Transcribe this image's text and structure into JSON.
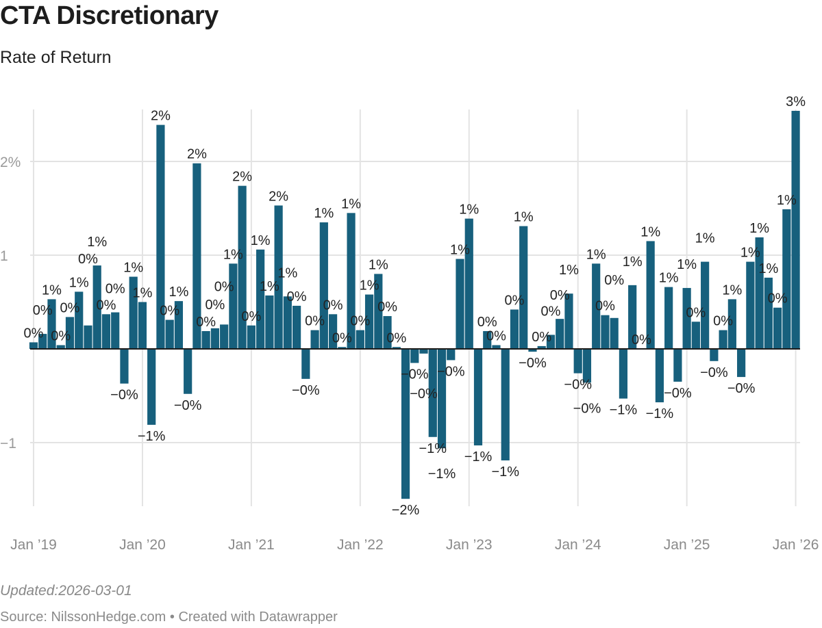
{
  "header": {
    "title": "CTA Discretionary",
    "subtitle": "Rate of Return"
  },
  "footer": {
    "updated": "Updated:2026-03-01",
    "source": "Source: NilssonHedge.com • Created with Datawrapper"
  },
  "chart_data": {
    "type": "bar",
    "title": "CTA Discretionary",
    "subtitle": "Rate of Return",
    "xlabel": "",
    "ylabel": "",
    "unit": "%",
    "ylim": [
      -1.6,
      2.6
    ],
    "grid": true,
    "bar_color": "#17607d",
    "y_ticks": [
      {
        "value": 2,
        "label": "2%"
      },
      {
        "value": 1,
        "label": "1"
      },
      {
        "value": -1,
        "label": "−1"
      }
    ],
    "x_ticks": [
      {
        "index": 0,
        "label": "Jan ’19"
      },
      {
        "index": 12,
        "label": "Jan ’20"
      },
      {
        "index": 24,
        "label": "Jan ’21"
      },
      {
        "index": 36,
        "label": "Jan ’22"
      },
      {
        "index": 48,
        "label": "Jan ’23"
      },
      {
        "index": 60,
        "label": "Jan ’24"
      },
      {
        "index": 72,
        "label": "Jan ’25"
      },
      {
        "index": 84,
        "label": "Jan ’26"
      }
    ],
    "x": [
      "2019-01",
      "2019-02",
      "2019-03",
      "2019-04",
      "2019-05",
      "2019-06",
      "2019-07",
      "2019-08",
      "2019-09",
      "2019-10",
      "2019-11",
      "2019-12",
      "2020-01",
      "2020-02",
      "2020-03",
      "2020-04",
      "2020-05",
      "2020-06",
      "2020-07",
      "2020-08",
      "2020-09",
      "2020-10",
      "2020-11",
      "2020-12",
      "2021-01",
      "2021-02",
      "2021-03",
      "2021-04",
      "2021-05",
      "2021-06",
      "2021-07",
      "2021-08",
      "2021-09",
      "2021-10",
      "2021-11",
      "2021-12",
      "2022-01",
      "2022-02",
      "2022-03",
      "2022-04",
      "2022-05",
      "2022-06",
      "2022-07",
      "2022-08",
      "2022-09",
      "2022-10",
      "2022-11",
      "2022-12",
      "2023-01",
      "2023-02",
      "2023-03",
      "2023-04",
      "2023-05",
      "2023-06",
      "2023-07",
      "2023-08",
      "2023-09",
      "2023-10",
      "2023-11",
      "2023-12",
      "2024-01",
      "2024-02",
      "2024-03",
      "2024-04",
      "2024-05",
      "2024-06",
      "2024-07",
      "2024-08",
      "2024-09",
      "2024-10",
      "2024-11",
      "2024-12",
      "2025-01",
      "2025-02",
      "2025-03",
      "2025-04",
      "2025-05",
      "2025-06",
      "2025-07",
      "2025-08",
      "2025-09",
      "2025-10",
      "2025-11",
      "2025-12",
      "2026-01"
    ],
    "values": [
      0.07,
      0.16,
      0.53,
      0.04,
      0.34,
      0.61,
      0.25,
      0.89,
      0.37,
      0.39,
      -0.37,
      0.77,
      0.5,
      -0.81,
      2.39,
      0.31,
      0.51,
      -0.48,
      1.98,
      0.19,
      0.22,
      0.26,
      0.91,
      1.74,
      0.25,
      1.06,
      0.57,
      1.53,
      0.56,
      0.46,
      -0.32,
      0.2,
      1.35,
      0.37,
      0.02,
      1.45,
      0.2,
      0.58,
      0.8,
      0.35,
      0.02,
      -1.6,
      -0.15,
      -0.05,
      -0.94,
      -1.06,
      -0.12,
      0.96,
      1.39,
      -1.03,
      0.19,
      0.04,
      -1.19,
      0.42,
      1.31,
      -0.03,
      0.03,
      0.15,
      0.32,
      0.59,
      -0.26,
      -0.36,
      0.91,
      0.36,
      0.33,
      -0.53,
      0.68,
      0.0,
      1.15,
      -0.57,
      0.66,
      -0.35,
      0.65,
      0.29,
      0.93,
      -0.13,
      0.2,
      0.53,
      -0.3,
      0.93,
      1.19,
      0.76,
      0.44,
      1.49,
      2.54
    ],
    "labels": [
      "0%",
      "0%",
      "1%",
      "0%",
      "0%",
      "1%",
      "0%",
      "1%",
      "0%",
      "0%",
      "−0%",
      "1%",
      "1%",
      "−1%",
      "2%",
      "0%",
      "1%",
      "−0%",
      "2%",
      "0%",
      "0%",
      "0%",
      "1%",
      "2%",
      "0%",
      "1%",
      "1%",
      "2%",
      "1%",
      "0%",
      "−0%",
      "0%",
      "1%",
      "0%",
      "0%",
      "1%",
      "0%",
      "1%",
      "1%",
      "0%",
      "0%",
      "−2%",
      "−0%",
      "−0%",
      "−1%",
      "−1%",
      "−0%",
      "1%",
      "1%",
      "−1%",
      "0%",
      "0%",
      "−1%",
      "0%",
      "1%",
      "−0%",
      "0%",
      "0%",
      "0%",
      "1%",
      "−0%",
      "−0%",
      "1%",
      "0%",
      "0%",
      "−1%",
      "1%",
      "0%",
      "1%",
      "−1%",
      "1%",
      "−0%",
      "1%",
      "0%",
      "1%",
      "−0%",
      "0%",
      "1%",
      "−0%",
      "1%",
      "1%",
      "1%",
      "0%",
      "1%",
      "3%"
    ]
  }
}
